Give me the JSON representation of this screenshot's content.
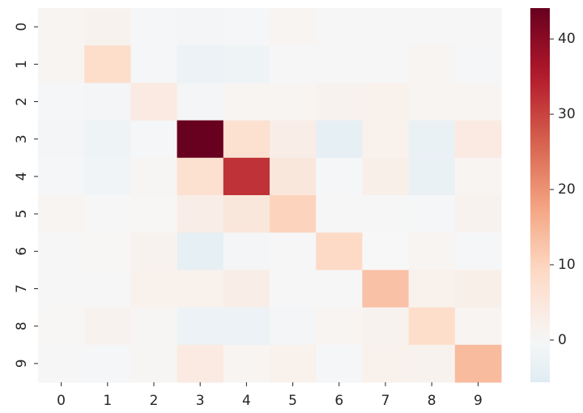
{
  "chart_data": {
    "type": "heatmap",
    "x_categories": [
      "0",
      "1",
      "2",
      "3",
      "4",
      "5",
      "6",
      "7",
      "8",
      "9"
    ],
    "y_categories": [
      "0",
      "1",
      "2",
      "3",
      "4",
      "5",
      "6",
      "7",
      "8",
      "9"
    ],
    "values": [
      [
        1,
        1.5,
        -0.5,
        -1,
        -0.5,
        1,
        -0.3,
        -0.3,
        -0.3,
        -0.3
      ],
      [
        1,
        8,
        -0.5,
        -2.5,
        -2,
        -0.3,
        -0.3,
        -0.3,
        1,
        -0.5
      ],
      [
        -0.5,
        -1,
        4,
        -1,
        1,
        1,
        1.5,
        2,
        1,
        1
      ],
      [
        -1,
        -2,
        -0.5,
        44,
        7,
        3,
        -4,
        2,
        -3,
        4
      ],
      [
        -0.5,
        -1.5,
        0.5,
        7,
        32,
        5,
        -0.5,
        2.5,
        -3,
        1
      ],
      [
        1,
        -0.3,
        0.3,
        3,
        5,
        10,
        -0.3,
        -0.3,
        -0.5,
        1.5
      ],
      [
        -0.3,
        0.3,
        1.5,
        -4,
        -1,
        -0.3,
        9,
        0,
        1,
        -0.5
      ],
      [
        -0.3,
        -0.3,
        2,
        2,
        3,
        -0.3,
        -0.3,
        13,
        2,
        2.5
      ],
      [
        0.3,
        1.5,
        0.5,
        -2.5,
        -2.5,
        -1,
        1,
        1.5,
        8,
        1
      ],
      [
        -0.3,
        -0.5,
        0.5,
        4,
        1,
        2,
        -0.5,
        2,
        1.5,
        14
      ]
    ],
    "colormap": [
      "#053061",
      "#2166ac",
      "#4393c3",
      "#92c5de",
      "#d1e5f0",
      "#f7f7f7",
      "#fddbc7",
      "#f4a582",
      "#d6604d",
      "#b2182b",
      "#67001f"
    ],
    "center": 0,
    "ylim": [
      -5.6,
      44.1
    ],
    "yticks": [
      0,
      10,
      20,
      30,
      40
    ]
  }
}
